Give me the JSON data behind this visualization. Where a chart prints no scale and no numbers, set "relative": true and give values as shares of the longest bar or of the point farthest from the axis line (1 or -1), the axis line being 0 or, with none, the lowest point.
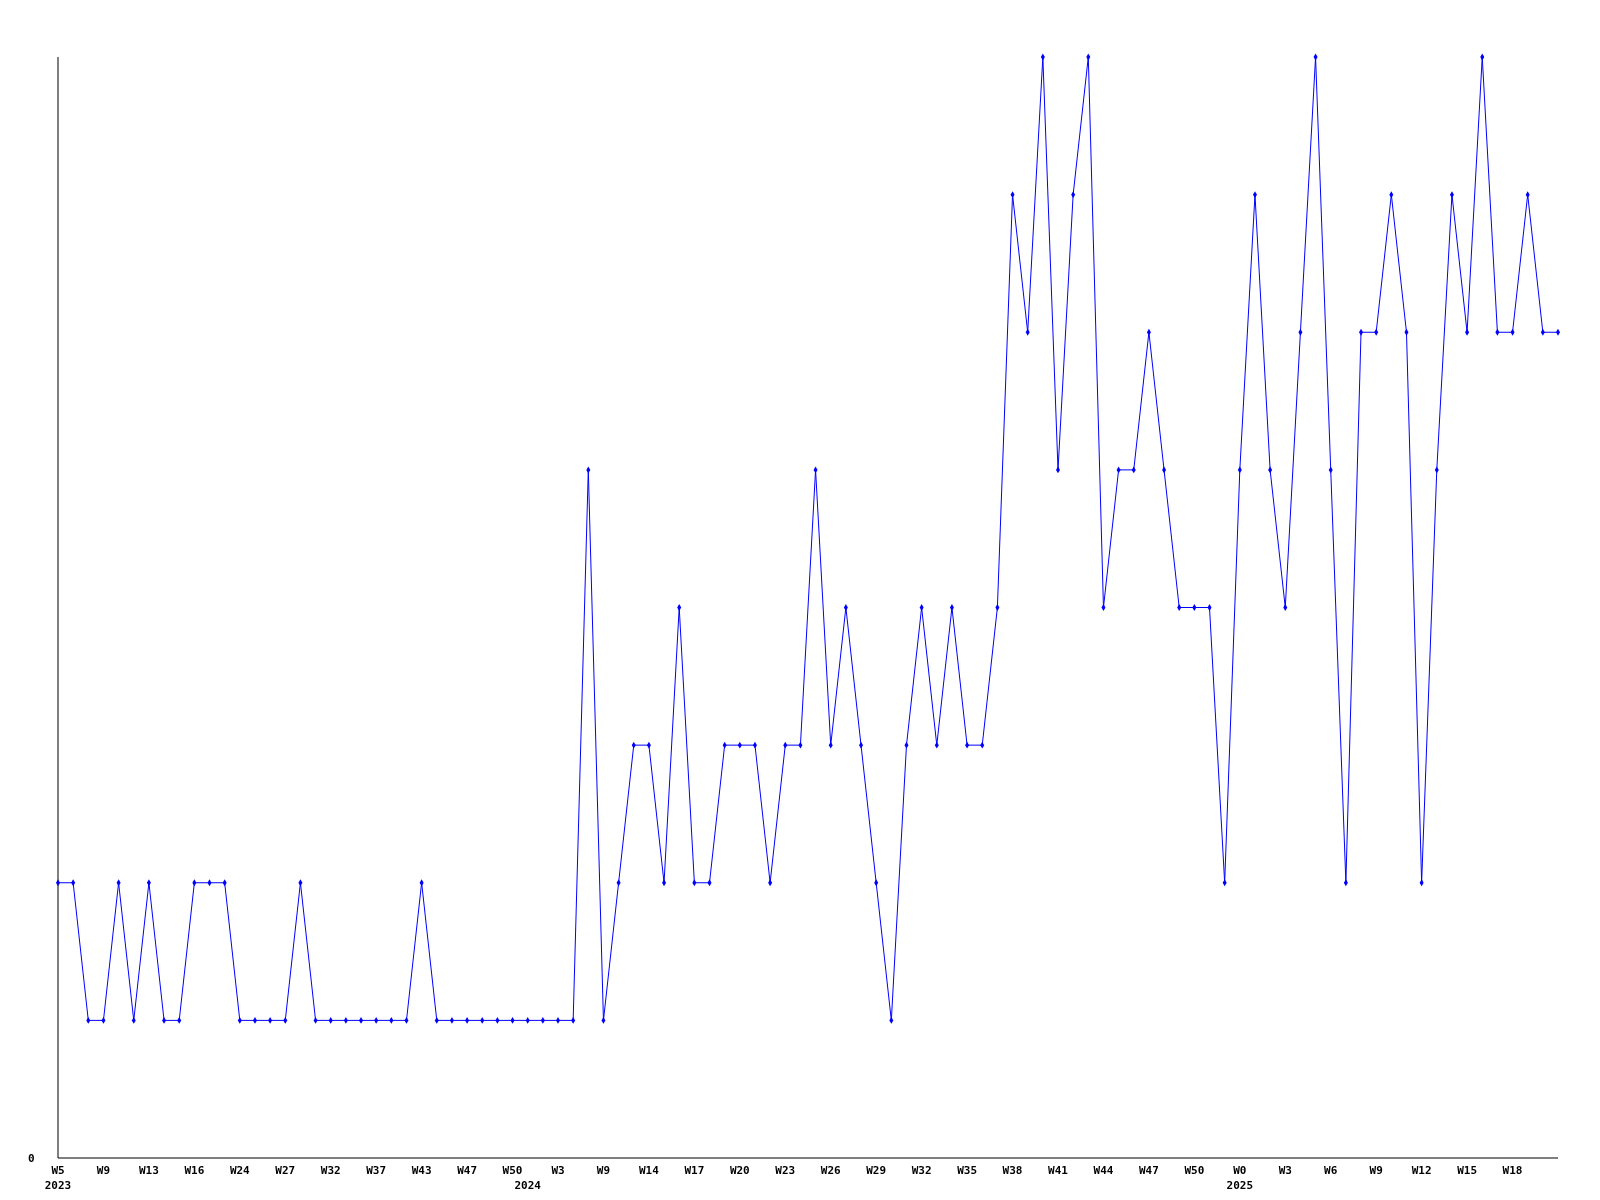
{
  "chart_data": {
    "type": "line",
    "relative": true,
    "marker": "diamond",
    "categories": [
      "W5\n2023",
      null,
      null,
      "W9",
      null,
      null,
      "W13",
      null,
      null,
      "W16",
      null,
      null,
      "W24",
      null,
      null,
      "W27",
      null,
      null,
      "W32",
      null,
      null,
      "W37",
      null,
      null,
      "W43",
      null,
      null,
      "W47",
      null,
      null,
      "W50",
      "\n2024",
      null,
      "W3",
      null,
      null,
      "W9",
      null,
      null,
      "W14",
      null,
      null,
      "W17",
      null,
      null,
      "W20",
      null,
      null,
      "W23",
      null,
      null,
      "W26",
      null,
      null,
      "W29",
      null,
      null,
      "W32",
      null,
      null,
      "W35",
      null,
      null,
      "W38",
      null,
      null,
      "W41",
      null,
      null,
      "W44",
      null,
      null,
      "W47",
      null,
      null,
      "W50",
      null,
      null,
      "W0\n2025",
      null,
      null,
      "W3",
      null,
      null,
      "W6",
      null,
      null,
      "W9",
      null,
      null,
      "W12",
      null,
      null,
      "W15",
      null,
      null,
      "W18",
      null,
      null,
      null
    ],
    "series": [
      {
        "color": "#0000ff",
        "values": [
          0.25,
          0.25,
          0.125,
          0.125,
          0.25,
          0.125,
          0.25,
          0.125,
          0.125,
          0.25,
          0.25,
          0.25,
          0.125,
          0.125,
          0.125,
          0.125,
          0.25,
          0.125,
          0.125,
          0.125,
          0.125,
          0.125,
          0.125,
          0.125,
          0.25,
          0.125,
          0.125,
          0.125,
          0.125,
          0.125,
          0.125,
          0.125,
          0.125,
          0.125,
          0.125,
          0.625,
          0.125,
          0.25,
          0.375,
          0.375,
          0.25,
          0.5,
          0.25,
          0.25,
          0.375,
          0.375,
          0.375,
          0.25,
          0.375,
          0.375,
          0.625,
          0.375,
          0.5,
          0.375,
          0.25,
          0.125,
          0.375,
          0.5,
          0.375,
          0.5,
          0.375,
          0.375,
          0.5,
          0.875,
          0.75,
          1,
          0.625,
          0.875,
          1,
          0.5,
          0.625,
          0.625,
          0.75,
          0.625,
          0.5,
          0.5,
          0.5,
          0.25,
          0.625,
          0.875,
          0.625,
          0.5,
          0.75,
          1,
          0.625,
          0.25,
          0.75,
          0.75,
          0.875,
          0.75,
          0.25,
          0.625,
          0.875,
          0.75,
          1,
          0.75,
          0.75,
          0.875,
          0.75,
          0.75
        ]
      }
    ],
    "annotations": [
      "0"
    ]
  }
}
